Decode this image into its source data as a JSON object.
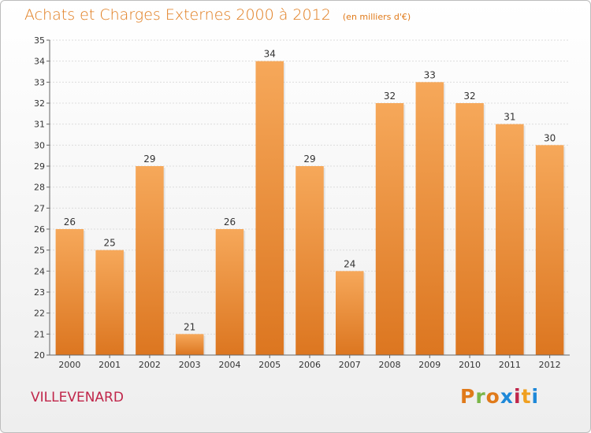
{
  "header": {
    "title": "Achats et Charges Externes 2000 à 2012",
    "unit": "(en milliers d'€)"
  },
  "footer": {
    "commune": "VILLEVENARD",
    "logo_text": "Proxiti"
  },
  "colors": {
    "title": "#e07a1a",
    "commune": "#c0264a",
    "bar_top": "#f6a85a",
    "bar_bottom": "#dc7620",
    "logo_letters": [
      "#e07a1a",
      "#7ab648",
      "#e07a1a",
      "#1e88d8",
      "#c0264a",
      "#f0a020",
      "#1e88d8"
    ]
  },
  "chart_data": {
    "type": "bar",
    "title": "Achats et Charges Externes 2000 à 2012",
    "subtitle": "(en milliers d'€)",
    "categories": [
      "2000",
      "2001",
      "2002",
      "2003",
      "2004",
      "2005",
      "2006",
      "2007",
      "2008",
      "2009",
      "2010",
      "2011",
      "2012"
    ],
    "values": [
      26,
      25,
      29,
      21,
      26,
      34,
      29,
      24,
      32,
      33,
      32,
      31,
      30
    ],
    "ylim": [
      20,
      35
    ],
    "yticks": [
      20,
      21,
      22,
      23,
      24,
      25,
      26,
      27,
      28,
      29,
      30,
      31,
      32,
      33,
      34,
      35
    ],
    "grid": true,
    "xlabel": "",
    "ylabel": ""
  }
}
